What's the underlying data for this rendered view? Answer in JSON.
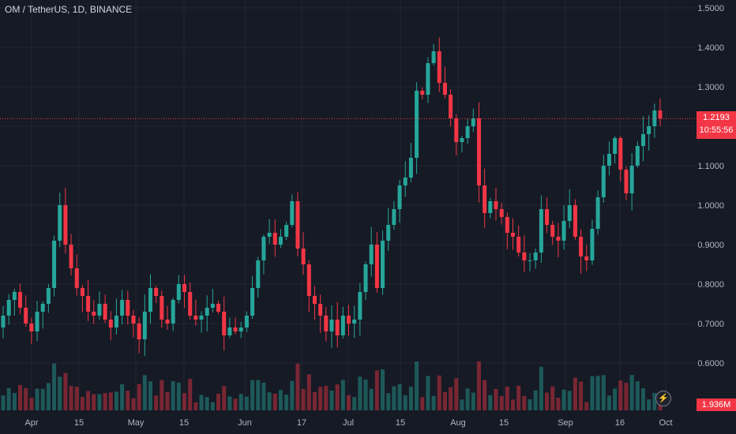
{
  "header": {
    "title": "OM / TetherUS, 1D, BINANCE"
  },
  "colors": {
    "up": "#26a69a",
    "down": "#f23645",
    "grid": "#232733",
    "axis_text": "#b2b5be",
    "bg": "#161a25"
  },
  "last_price": {
    "value": "1.2193",
    "countdown": "10:55:56"
  },
  "volume_label": "1.936M",
  "icons": {
    "flash": "lightning-icon"
  },
  "chart_data": {
    "type": "candlestick",
    "title": "OM / TetherUS, 1D, BINANCE",
    "ylim": [
      0.55,
      1.52
    ],
    "y_ticks": [
      "1.5000",
      "1.4000",
      "1.3000",
      "1.2000",
      "1.1000",
      "1.0000",
      "0.9000",
      "0.8000",
      "0.7000",
      "0.6000"
    ],
    "x_ticks": [
      "Apr",
      "15",
      "May",
      "15",
      "Jun",
      "17",
      "Jul",
      "15",
      "Aug",
      "15",
      "Sep",
      "16",
      "Oct"
    ],
    "grid": true,
    "candles_close": [
      0.72,
      0.76,
      0.78,
      0.74,
      0.7,
      0.68,
      0.73,
      0.75,
      0.79,
      0.91,
      1.0,
      0.9,
      0.84,
      0.79,
      0.77,
      0.73,
      0.72,
      0.75,
      0.71,
      0.69,
      0.72,
      0.76,
      0.72,
      0.7,
      0.66,
      0.73,
      0.79,
      0.77,
      0.71,
      0.7,
      0.76,
      0.8,
      0.78,
      0.72,
      0.71,
      0.72,
      0.74,
      0.75,
      0.73,
      0.67,
      0.69,
      0.68,
      0.69,
      0.72,
      0.79,
      0.86,
      0.92,
      0.93,
      0.9,
      0.92,
      0.95,
      1.01,
      0.89,
      0.85,
      0.77,
      0.75,
      0.72,
      0.68,
      0.71,
      0.67,
      0.72,
      0.7,
      0.71,
      0.78,
      0.85,
      0.9,
      0.79,
      0.91,
      0.95,
      0.99,
      1.05,
      1.07,
      1.12,
      1.29,
      1.28,
      1.36,
      1.39,
      1.31,
      1.28,
      1.22,
      1.16,
      1.17,
      1.2,
      1.22,
      1.05,
      0.98,
      1.01,
      0.99,
      0.97,
      0.93,
      0.92,
      0.88,
      0.86,
      0.86,
      0.88,
      0.99,
      0.95,
      0.92,
      0.91,
      0.96,
      1.0,
      0.92,
      0.87,
      0.86,
      0.94,
      1.02,
      1.1,
      1.13,
      1.17,
      1.09,
      1.03,
      1.1,
      1.15,
      1.18,
      1.2,
      1.24,
      1.22
    ],
    "volume_max_label": "1.936M"
  }
}
